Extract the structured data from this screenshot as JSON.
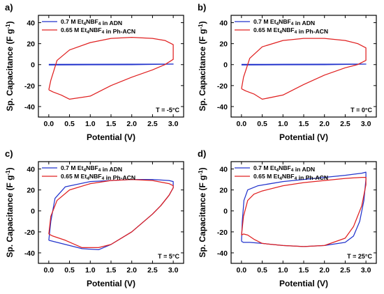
{
  "chart_data": [
    {
      "type": "line",
      "panel": "a)",
      "xlabel": "Potential (V)",
      "ylabel": "Sp. Capacitance (F g-1)",
      "xlim": [
        -0.25,
        3.25
      ],
      "ylim": [
        -50,
        47
      ],
      "xticks": [
        "0.0",
        "0.5",
        "1.0",
        "1.5",
        "2.0",
        "2.5",
        "3.0"
      ],
      "yticks": [
        "-40",
        "-20",
        "0",
        "20",
        "40"
      ],
      "annotation": "T = -5°C",
      "legend_position": "top-left",
      "series": [
        {
          "name": "0.7 M Et4NBF4 in ADN",
          "color": "#2233cc",
          "x": [
            0.0,
            1.0,
            2.0,
            3.0,
            2.0,
            1.0,
            0.0
          ],
          "y": [
            0.2,
            0.3,
            0.4,
            0.5,
            -0.1,
            -0.2,
            -0.3
          ]
        },
        {
          "name": "0.65 M Et4NBF4 in Ph-ACN",
          "color": "#e02020",
          "x": [
            0.0,
            0.05,
            0.2,
            0.5,
            1.0,
            1.5,
            2.0,
            2.5,
            2.8,
            3.0,
            3.0,
            2.8,
            2.5,
            2.0,
            1.5,
            1.0,
            0.5,
            0.3,
            0.1,
            0.0,
            0.0
          ],
          "y": [
            -24,
            -15,
            4,
            14,
            21,
            25,
            26,
            25,
            23,
            19,
            5,
            0,
            -5,
            -12,
            -20,
            -30,
            -33,
            -29,
            -26,
            -24,
            -24
          ]
        }
      ]
    },
    {
      "type": "line",
      "panel": "b)",
      "xlabel": "Potential (V)",
      "ylabel": "Sp. Capacitance (F g-1)",
      "xlim": [
        -0.25,
        3.25
      ],
      "ylim": [
        -50,
        47
      ],
      "xticks": [
        "0.0",
        "0.5",
        "1.0",
        "1.5",
        "2.0",
        "2.5",
        "3.0"
      ],
      "yticks": [
        "-40",
        "-20",
        "0",
        "20",
        "40"
      ],
      "annotation": "T = 0°C",
      "legend_position": "top-left",
      "series": [
        {
          "name": "0.7 M Et4NBF4 in ADN",
          "color": "#2233cc",
          "x": [
            0.0,
            1.0,
            2.0,
            3.0,
            2.0,
            1.0,
            0.0
          ],
          "y": [
            0.2,
            0.3,
            0.4,
            0.5,
            -0.1,
            -0.2,
            -0.3
          ]
        },
        {
          "name": "0.65 M Et4NBF4 in Ph-ACN",
          "color": "#e02020",
          "x": [
            0.0,
            0.05,
            0.2,
            0.5,
            1.0,
            1.5,
            2.0,
            2.5,
            2.8,
            3.0,
            3.0,
            2.8,
            2.5,
            2.0,
            1.5,
            1.0,
            0.5,
            0.3,
            0.1,
            0.0,
            0.0
          ],
          "y": [
            -23,
            -12,
            6,
            17,
            23,
            25,
            25,
            23,
            20,
            16,
            4,
            0,
            -3,
            -10,
            -19,
            -29,
            -33,
            -28,
            -25,
            -23,
            -23
          ]
        }
      ]
    },
    {
      "type": "line",
      "panel": "c)",
      "xlabel": "Potential (V)",
      "ylabel": "Sp. Capacitance (F g-1)",
      "xlim": [
        -0.25,
        3.25
      ],
      "ylim": [
        -50,
        47
      ],
      "xticks": [
        "0.0",
        "0.5",
        "1.0",
        "1.5",
        "2.0",
        "2.5",
        "3.0"
      ],
      "yticks": [
        "-40",
        "-20",
        "0",
        "20",
        "40"
      ],
      "annotation": "T = 5°C",
      "legend_position": "top-left",
      "series": [
        {
          "name": "0.7 M Et4NBF4 in ADN",
          "color": "#2233cc",
          "x": [
            0.0,
            0.05,
            0.15,
            0.4,
            1.0,
            1.5,
            2.0,
            2.5,
            2.9,
            3.0,
            3.0,
            2.9,
            2.7,
            2.5,
            2.0,
            1.5,
            1.2,
            0.8,
            0.4,
            0.1,
            0.0,
            0.0
          ],
          "y": [
            -28,
            -10,
            12,
            23,
            28,
            29,
            30,
            30,
            29,
            28,
            22,
            15,
            5,
            -3,
            -20,
            -32,
            -37,
            -36,
            -32,
            -29,
            -28,
            -28
          ]
        },
        {
          "name": "0.65 M Et4NBF4 in Ph-ACN",
          "color": "#e02020",
          "x": [
            0.0,
            0.05,
            0.2,
            0.5,
            1.0,
            1.5,
            2.0,
            2.5,
            2.9,
            3.0,
            3.0,
            2.9,
            2.7,
            2.5,
            2.0,
            1.5,
            1.2,
            0.8,
            0.4,
            0.1,
            0.0
          ],
          "y": [
            -22,
            -5,
            10,
            20,
            26,
            29,
            30,
            29,
            26,
            24,
            22,
            15,
            5,
            -3,
            -20,
            -32,
            -35,
            -35,
            -28,
            -24,
            -22
          ]
        }
      ]
    },
    {
      "type": "line",
      "panel": "d)",
      "xlabel": "Potential (V)",
      "ylabel": "Sp. Capacitance (F g-1)",
      "xlim": [
        -0.25,
        3.25
      ],
      "ylim": [
        -50,
        47
      ],
      "xticks": [
        "0.0",
        "0.5",
        "1.0",
        "1.5",
        "2.0",
        "2.5",
        "3.0"
      ],
      "yticks": [
        "-40",
        "-20",
        "0",
        "20",
        "40"
      ],
      "annotation": "T = 25°C",
      "legend_position": "top-left",
      "series": [
        {
          "name": "0.7 M Et4NBF4 in ADN",
          "color": "#2233cc",
          "x": [
            0.0,
            0.02,
            0.06,
            0.15,
            0.4,
            1.0,
            1.5,
            2.0,
            2.5,
            2.9,
            3.0,
            3.0,
            2.95,
            2.85,
            2.7,
            2.5,
            2.0,
            1.5,
            1.0,
            0.5,
            0.2,
            0.05,
            0.0
          ],
          "y": [
            -29,
            -10,
            10,
            20,
            24,
            28,
            30,
            32,
            34,
            36,
            37,
            30,
            10,
            -10,
            -24,
            -30,
            -33,
            -34,
            -33,
            -31,
            -30,
            -30,
            -29
          ]
        },
        {
          "name": "0.65 M Et4NBF4 in Ph-ACN",
          "color": "#e02020",
          "x": [
            0.0,
            0.05,
            0.15,
            0.3,
            0.5,
            1.0,
            1.5,
            2.0,
            2.5,
            2.9,
            3.0,
            3.0,
            2.9,
            2.7,
            2.5,
            2.0,
            1.5,
            1.0,
            0.5,
            0.3,
            0.15,
            0.05,
            0.0
          ],
          "y": [
            -23,
            -5,
            10,
            16,
            19,
            24,
            27,
            29,
            31,
            32,
            32,
            25,
            5,
            -15,
            -26,
            -33,
            -34,
            -33,
            -31,
            -27,
            -23,
            -22,
            -23
          ]
        }
      ]
    }
  ]
}
